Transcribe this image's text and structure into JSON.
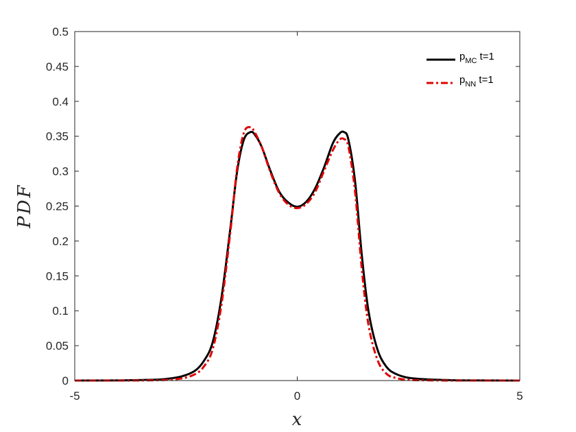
{
  "chart_data": {
    "type": "line",
    "xlabel": "x",
    "ylabel": "PDF",
    "xlim": [
      -5,
      5
    ],
    "ylim": [
      0,
      0.5
    ],
    "xticks": [
      -5,
      0,
      5
    ],
    "yticks": [
      0,
      0.05,
      0.1,
      0.15,
      0.2,
      0.25,
      0.3,
      0.35,
      0.4,
      0.45,
      0.5
    ],
    "grid": false,
    "legend_position": "top-right",
    "series": [
      {
        "name": "p_MC t=1",
        "legend_main": "p",
        "legend_sub": "MC",
        "legend_rest": " t=1",
        "color": "#000000",
        "style": "solid",
        "x": [
          -5,
          -4,
          -3.5,
          -3,
          -2.6,
          -2.3,
          -2.1,
          -1.9,
          -1.7,
          -1.5,
          -1.35,
          -1.2,
          -1.05,
          -0.95,
          -0.8,
          -0.6,
          -0.4,
          -0.2,
          0,
          0.2,
          0.4,
          0.6,
          0.8,
          0.95,
          1.05,
          1.15,
          1.3,
          1.45,
          1.6,
          1.8,
          2.0,
          2.2,
          2.5,
          3.0,
          3.5,
          4.0,
          5.0
        ],
        "y": [
          0,
          0.0003,
          0.0008,
          0.002,
          0.006,
          0.014,
          0.028,
          0.055,
          0.12,
          0.22,
          0.3,
          0.345,
          0.356,
          0.352,
          0.335,
          0.3,
          0.27,
          0.255,
          0.249,
          0.256,
          0.275,
          0.305,
          0.34,
          0.354,
          0.356,
          0.345,
          0.285,
          0.18,
          0.1,
          0.045,
          0.02,
          0.01,
          0.004,
          0.0015,
          0.0005,
          0.0002,
          0
        ]
      },
      {
        "name": "p_NN t=1",
        "legend_main": "p",
        "legend_sub": "NN",
        "legend_rest": " t=1",
        "color": "#e00000",
        "style": "dash-dot",
        "x": [
          -5,
          -4,
          -3.5,
          -3,
          -2.6,
          -2.3,
          -2.1,
          -1.9,
          -1.7,
          -1.5,
          -1.35,
          -1.2,
          -1.05,
          -0.95,
          -0.8,
          -0.6,
          -0.4,
          -0.2,
          0,
          0.2,
          0.4,
          0.6,
          0.8,
          0.95,
          1.05,
          1.15,
          1.3,
          1.45,
          1.6,
          1.8,
          2.0,
          2.2,
          2.5,
          3.0,
          3.5,
          4.0,
          5.0
        ],
        "y": [
          0,
          0,
          0.0002,
          0.0008,
          0.003,
          0.009,
          0.02,
          0.045,
          0.11,
          0.215,
          0.305,
          0.355,
          0.363,
          0.355,
          0.335,
          0.298,
          0.268,
          0.252,
          0.247,
          0.253,
          0.27,
          0.3,
          0.33,
          0.345,
          0.346,
          0.335,
          0.27,
          0.16,
          0.08,
          0.03,
          0.01,
          0.004,
          0.001,
          0.0003,
          0,
          0,
          0
        ]
      }
    ]
  }
}
